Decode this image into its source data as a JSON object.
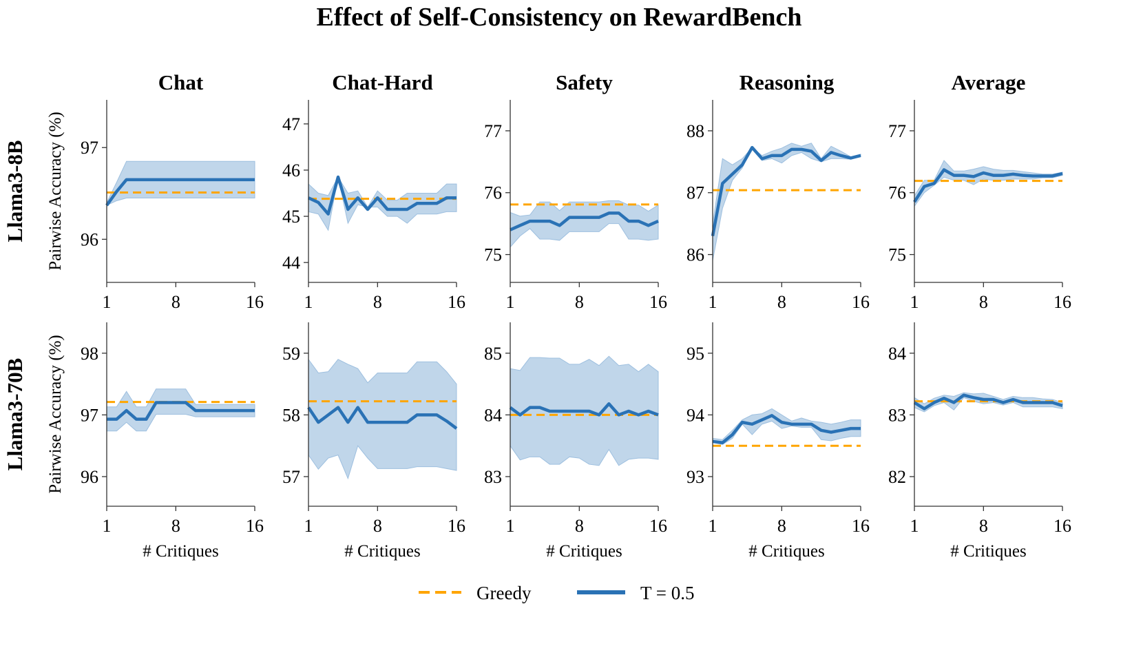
{
  "chart_data": {
    "type": "line",
    "title": "Effect of Self-Consistency on RewardBench",
    "xlabel": "# Critiques",
    "ylabel": "Pairwise Accuracy (%)",
    "x": [
      1,
      2,
      3,
      4,
      5,
      6,
      7,
      8,
      9,
      10,
      11,
      12,
      13,
      14,
      15,
      16
    ],
    "xticks": [
      1,
      8,
      16
    ],
    "columns": [
      "Chat",
      "Chat-Hard",
      "Safety",
      "Reasoning",
      "Average"
    ],
    "rows": [
      "Llama3-8B",
      "Llama3-70B"
    ],
    "legend": {
      "placement": "bottom-center",
      "entries": [
        {
          "name": "Greedy",
          "color": "#ffa500",
          "style": "dashed"
        },
        {
          "name": "T = 0.5",
          "color": "#2a72b5",
          "style": "solid"
        }
      ]
    },
    "band_color": "#c0d6ea",
    "panels": [
      [
        {
          "ylim": [
            95.53,
            97.52
          ],
          "yticks": [
            96,
            97
          ],
          "greedy": 96.51,
          "mean": [
            96.37,
            96.52,
            96.65,
            96.65,
            96.65,
            96.65,
            96.65,
            96.65,
            96.65,
            96.65,
            96.65,
            96.65,
            96.65,
            96.65,
            96.65,
            96.65
          ],
          "lower": [
            96.37,
            96.42,
            96.45,
            96.45,
            96.45,
            96.45,
            96.45,
            96.45,
            96.45,
            96.45,
            96.45,
            96.45,
            96.45,
            96.45,
            96.45,
            96.45
          ],
          "upper": [
            96.4,
            96.62,
            96.85,
            96.85,
            96.85,
            96.85,
            96.85,
            96.85,
            96.85,
            96.85,
            96.85,
            96.85,
            96.85,
            96.85,
            96.85,
            96.85
          ]
        },
        {
          "ylim": [
            43.57,
            47.52
          ],
          "yticks": [
            44,
            45,
            46,
            47
          ],
          "greedy": 45.38,
          "mean": [
            45.4,
            45.3,
            45.05,
            45.85,
            45.15,
            45.4,
            45.15,
            45.4,
            45.15,
            45.15,
            45.15,
            45.28,
            45.28,
            45.28,
            45.4,
            45.4
          ],
          "lower": [
            45.1,
            45.05,
            44.7,
            45.85,
            44.85,
            45.25,
            45.2,
            45.2,
            45.0,
            45.0,
            44.85,
            45.05,
            45.05,
            45.05,
            45.1,
            45.1
          ],
          "upper": [
            45.7,
            45.5,
            45.45,
            45.85,
            45.5,
            45.55,
            45.2,
            45.55,
            45.35,
            45.35,
            45.5,
            45.5,
            45.5,
            45.5,
            45.7,
            45.7
          ]
        },
        {
          "ylim": [
            74.55,
            77.5
          ],
          "yticks": [
            75,
            76,
            77
          ],
          "greedy": 75.81,
          "mean": [
            75.4,
            75.47,
            75.54,
            75.54,
            75.54,
            75.47,
            75.6,
            75.6,
            75.6,
            75.6,
            75.67,
            75.67,
            75.54,
            75.54,
            75.47,
            75.54
          ],
          "lower": [
            75.12,
            75.3,
            75.42,
            75.25,
            75.25,
            75.23,
            75.37,
            75.37,
            75.37,
            75.37,
            75.5,
            75.5,
            75.25,
            75.25,
            75.23,
            75.25
          ],
          "upper": [
            75.68,
            75.62,
            75.64,
            75.85,
            75.85,
            75.71,
            75.85,
            75.85,
            75.85,
            75.85,
            75.87,
            75.87,
            75.8,
            75.8,
            75.7,
            75.8
          ]
        },
        {
          "ylim": [
            85.55,
            88.5
          ],
          "yticks": [
            86,
            87,
            88
          ],
          "greedy": 87.04,
          "mean": [
            86.3,
            87.15,
            87.3,
            87.45,
            87.73,
            87.55,
            87.6,
            87.6,
            87.7,
            87.7,
            87.67,
            87.52,
            87.65,
            87.6,
            87.56,
            87.6
          ],
          "lower": [
            85.9,
            86.75,
            87.2,
            87.4,
            87.73,
            87.52,
            87.55,
            87.48,
            87.6,
            87.65,
            87.55,
            87.5,
            87.55,
            87.55,
            87.54,
            87.6
          ],
          "upper": [
            86.5,
            87.55,
            87.45,
            87.55,
            87.73,
            87.6,
            87.67,
            87.72,
            87.8,
            87.75,
            87.8,
            87.55,
            87.75,
            87.67,
            87.58,
            87.62
          ]
        },
        {
          "ylim": [
            74.55,
            77.5
          ],
          "yticks": [
            75,
            76,
            77
          ],
          "greedy": 76.19,
          "mean": [
            75.85,
            76.1,
            76.15,
            76.37,
            76.28,
            76.28,
            76.26,
            76.32,
            76.28,
            76.28,
            76.3,
            76.28,
            76.27,
            76.27,
            76.27,
            76.31
          ],
          "lower": [
            75.78,
            76.0,
            76.12,
            76.25,
            76.2,
            76.2,
            76.13,
            76.22,
            76.2,
            76.2,
            76.22,
            76.22,
            76.22,
            76.24,
            76.24,
            76.28
          ],
          "upper": [
            75.95,
            76.2,
            76.2,
            76.52,
            76.35,
            76.35,
            76.38,
            76.42,
            76.38,
            76.36,
            76.36,
            76.34,
            76.32,
            76.3,
            76.3,
            76.33
          ]
        }
      ],
      [
        {
          "ylim": [
            95.52,
            98.5
          ],
          "yticks": [
            96,
            97,
            98
          ],
          "greedy": 97.21,
          "mean": [
            96.93,
            96.93,
            97.07,
            96.93,
            96.93,
            97.2,
            97.2,
            97.2,
            97.2,
            97.07,
            97.07,
            97.07,
            97.07,
            97.07,
            97.07,
            97.07
          ],
          "lower": [
            96.74,
            96.74,
            96.88,
            96.74,
            96.74,
            97.01,
            97.01,
            97.01,
            97.01,
            96.97,
            96.97,
            96.97,
            96.97,
            96.97,
            96.97,
            96.97
          ],
          "upper": [
            97.13,
            97.13,
            97.38,
            97.13,
            97.13,
            97.42,
            97.42,
            97.42,
            97.42,
            97.17,
            97.17,
            97.17,
            97.17,
            97.17,
            97.17,
            97.17
          ]
        },
        {
          "ylim": [
            56.52,
            59.5
          ],
          "yticks": [
            57,
            58,
            59
          ],
          "greedy": 58.22,
          "mean": [
            58.12,
            57.88,
            58.0,
            58.12,
            57.88,
            58.12,
            57.88,
            57.88,
            57.88,
            57.88,
            57.88,
            58.0,
            58.0,
            58.0,
            57.9,
            57.78
          ],
          "lower": [
            57.35,
            57.12,
            57.3,
            57.35,
            56.97,
            57.5,
            57.3,
            57.13,
            57.13,
            57.13,
            57.13,
            57.16,
            57.16,
            57.16,
            57.13,
            57.1
          ],
          "upper": [
            58.9,
            58.68,
            58.7,
            58.9,
            58.82,
            58.75,
            58.52,
            58.68,
            58.68,
            58.68,
            58.68,
            58.86,
            58.86,
            58.86,
            58.7,
            58.5
          ]
        },
        {
          "ylim": [
            82.52,
            85.5
          ],
          "yticks": [
            83,
            84,
            85
          ],
          "greedy": 84.0,
          "mean": [
            84.12,
            84.0,
            84.12,
            84.12,
            84.06,
            84.06,
            84.06,
            84.06,
            84.06,
            84.0,
            84.18,
            84.0,
            84.06,
            84.0,
            84.06,
            84.0
          ],
          "lower": [
            83.5,
            83.27,
            83.32,
            83.32,
            83.2,
            83.2,
            83.32,
            83.3,
            83.2,
            83.18,
            83.44,
            83.18,
            83.28,
            83.3,
            83.3,
            83.28
          ],
          "upper": [
            84.75,
            84.72,
            84.93,
            84.93,
            84.92,
            84.92,
            84.82,
            84.82,
            84.9,
            84.8,
            84.95,
            84.8,
            84.82,
            84.7,
            84.82,
            84.7
          ]
        },
        {
          "ylim": [
            92.52,
            95.5
          ],
          "yticks": [
            93,
            94,
            95
          ],
          "greedy": 93.5,
          "mean": [
            93.57,
            93.55,
            93.68,
            93.88,
            93.85,
            93.92,
            93.99,
            93.88,
            93.85,
            93.85,
            93.85,
            93.75,
            93.72,
            93.75,
            93.78,
            93.78
          ],
          "lower": [
            93.55,
            93.52,
            93.62,
            93.85,
            93.68,
            93.85,
            93.9,
            93.78,
            93.82,
            93.8,
            93.8,
            93.6,
            93.58,
            93.62,
            93.65,
            93.65
          ],
          "upper": [
            93.62,
            93.6,
            93.75,
            93.92,
            94.0,
            94.02,
            94.1,
            94.0,
            93.9,
            93.95,
            93.9,
            93.88,
            93.85,
            93.88,
            93.92,
            93.92
          ]
        },
        {
          "ylim": [
            81.52,
            84.5
          ],
          "yticks": [
            82,
            83,
            84
          ],
          "greedy": 83.22,
          "mean": [
            83.2,
            83.1,
            83.2,
            83.27,
            83.2,
            83.32,
            83.28,
            83.25,
            83.25,
            83.2,
            83.25,
            83.2,
            83.2,
            83.2,
            83.2,
            83.15
          ],
          "lower": [
            83.12,
            83.05,
            83.15,
            83.2,
            83.08,
            83.28,
            83.22,
            83.18,
            83.2,
            83.16,
            83.2,
            83.13,
            83.13,
            83.13,
            83.13,
            83.1
          ],
          "upper": [
            83.28,
            83.18,
            83.27,
            83.32,
            83.3,
            83.36,
            83.34,
            83.35,
            83.3,
            83.25,
            83.3,
            83.28,
            83.28,
            83.26,
            83.25,
            83.2
          ]
        }
      ]
    ]
  }
}
